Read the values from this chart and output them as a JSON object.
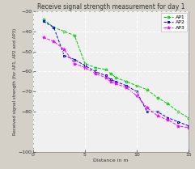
{
  "title": "Receive signal strength measurement for day 1",
  "xlabel": "Distance in m",
  "ylabel": "Received signal strength (for AP1, AP2 and AP3)",
  "xlim": [
    0,
    15
  ],
  "ylim": [
    -100,
    -30
  ],
  "yticks": [
    -100,
    -80,
    -70,
    -60,
    -50,
    -40,
    -30
  ],
  "xticks": [
    0,
    5,
    10,
    15
  ],
  "ap1_x": [
    1,
    2,
    3,
    4,
    5,
    6,
    7,
    7.5,
    8,
    9,
    10,
    11,
    12,
    13,
    14,
    15
  ],
  "ap1_y": [
    -34,
    -38,
    -40,
    -42,
    -56,
    -58,
    -59,
    -61,
    -63,
    -65,
    -67,
    -69,
    -73,
    -76,
    -80,
    -83
  ],
  "ap2_x": [
    1,
    2,
    3,
    4,
    5,
    6,
    7,
    7.5,
    8,
    9,
    10,
    11,
    12,
    13,
    14,
    15
  ],
  "ap2_y": [
    -35,
    -38,
    -52,
    -54,
    -57,
    -60,
    -62,
    -64,
    -65,
    -67,
    -70,
    -80,
    -80,
    -83,
    -85,
    -87
  ],
  "ap3_x": [
    1,
    2,
    3,
    4,
    5,
    6,
    7,
    7.5,
    8,
    9,
    10,
    11,
    12,
    13,
    14,
    15
  ],
  "ap3_y": [
    -43,
    -45,
    -49,
    -56,
    -58,
    -61,
    -63,
    -65,
    -66,
    -68,
    -72,
    -78,
    -82,
    -84,
    -87,
    -88
  ],
  "ap1_color": "#00cc00",
  "ap2_color": "#0000ff",
  "ap3_color": "#ff00ff",
  "background_color": "#d4d0c8",
  "plot_background": "#f0f0f0",
  "grid_color": "#ffffff",
  "title_fontsize": 5.5,
  "label_fontsize": 4.5,
  "tick_fontsize": 4.5,
  "legend_fontsize": 4.5
}
